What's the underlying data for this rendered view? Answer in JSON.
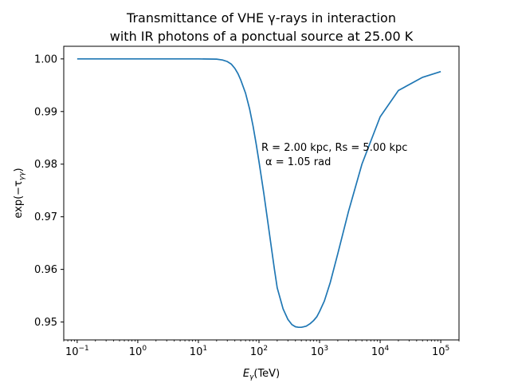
{
  "chart_data": {
    "type": "line",
    "title_lines": [
      "Transmittance of VHE γ-rays in interaction",
      "with IR photons of a ponctual source at 25.00 K"
    ],
    "xlabel_main": "E",
    "xlabel_sub": "γ",
    "xlabel_unit": "(TeV)",
    "ylabel_pre": "exp(−τ",
    "ylabel_sub": "γγ",
    "ylabel_post": ")",
    "xscale": "log",
    "xlim": [
      0.06,
      200000
    ],
    "ylim": [
      0.9466,
      1.0024
    ],
    "x_tick_exponents": [
      -1,
      0,
      1,
      2,
      3,
      4,
      5
    ],
    "x_tick_base": "10",
    "y_ticks": [
      "0.95",
      "0.96",
      "0.97",
      "0.98",
      "0.99",
      "1.00"
    ],
    "y_tick_values": [
      0.95,
      0.96,
      0.97,
      0.98,
      0.99,
      1.0
    ],
    "grid": false,
    "line_color": "#1f77b4",
    "annotation_lines": [
      "R = 2.00 kpc, Rs = 5.00 kpc",
      "α = 1.05 rad"
    ],
    "series": [
      {
        "x": [
          0.1,
          1,
          10,
          20,
          25,
          30,
          35,
          40,
          45,
          50,
          60,
          70,
          80,
          90,
          100,
          120,
          140,
          160,
          180,
          200,
          250,
          300,
          350,
          400,
          450,
          500,
          600,
          700,
          800,
          900,
          1000,
          1200,
          1500,
          2000,
          3000,
          5000,
          10000,
          20000,
          50000,
          100000
        ],
        "y": [
          1.0,
          1.0,
          1.0,
          0.99995,
          0.9998,
          0.9995,
          0.999,
          0.9982,
          0.9972,
          0.996,
          0.9935,
          0.9905,
          0.9872,
          0.9838,
          0.9805,
          0.9745,
          0.969,
          0.9642,
          0.96,
          0.9565,
          0.9525,
          0.9505,
          0.9495,
          0.9491,
          0.949,
          0.949,
          0.9492,
          0.9497,
          0.9503,
          0.951,
          0.952,
          0.954,
          0.9575,
          0.963,
          0.971,
          0.98,
          0.989,
          0.994,
          0.9965,
          0.9976
        ]
      }
    ]
  }
}
